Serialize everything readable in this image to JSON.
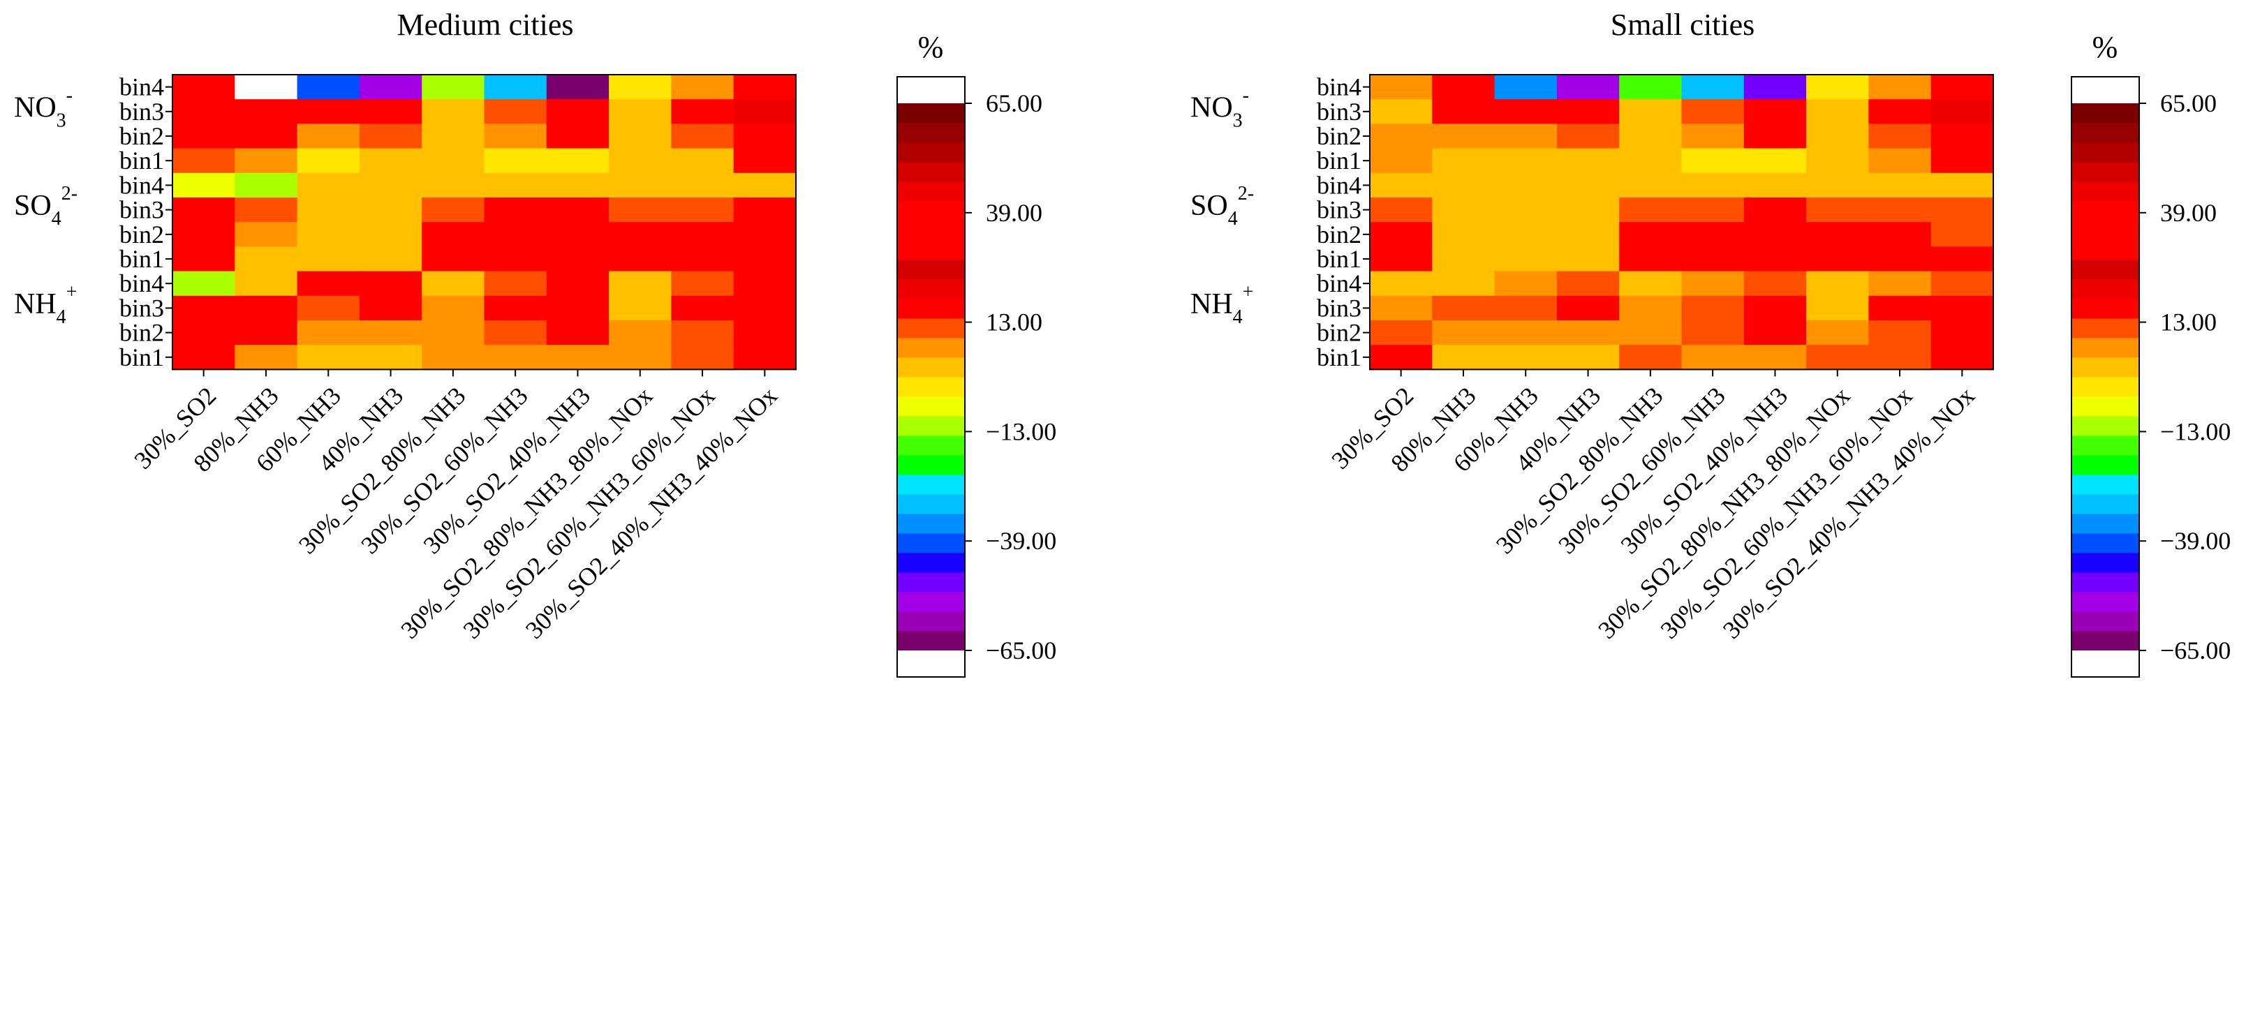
{
  "chart_data": [
    {
      "type": "heatmap",
      "title": "Medium cities",
      "columns": [
        "30%_SO2",
        "80%_NH3",
        "60%_NH3",
        "40%_NH3",
        "30%_SO2_80%_NH3",
        "30%_SO2_60%_NH3",
        "30%_SO2_40%_NH3",
        "30%_SO2_80%_NH3_80%_NOx",
        "30%_SO2_60%_NH3_60%_NOx",
        "30%_SO2_40%_NH3_40%_NOx"
      ],
      "row_labels": [
        "bin4",
        "bin3",
        "bin2",
        "bin1",
        "bin4",
        "bin3",
        "bin2",
        "bin1",
        "bin4",
        "bin3",
        "bin2",
        "bin1"
      ],
      "groups": [
        {
          "base": "NO",
          "sub": "3",
          "sup": "-",
          "rows": [
            0,
            3
          ]
        },
        {
          "base": "SO",
          "sub": "4",
          "sup": "2-",
          "rows": [
            4,
            7
          ]
        },
        {
          "base": "NH",
          "sub": "4",
          "sup": "+",
          "rows": [
            8,
            11
          ]
        }
      ],
      "values": [
        [
          15,
          70,
          -40,
          -55,
          -12,
          -30,
          -62,
          -2,
          8,
          30
        ],
        [
          15,
          30,
          15,
          30,
          3,
          10,
          30,
          0,
          15,
          45
        ],
        [
          15,
          30,
          7,
          10,
          3,
          6,
          15,
          0,
          10,
          30
        ],
        [
          10,
          7,
          -3,
          0,
          0,
          -3,
          -3,
          0,
          3,
          30
        ],
        [
          -5,
          -10,
          0,
          0,
          3,
          3,
          3,
          3,
          3,
          3
        ],
        [
          30,
          10,
          3,
          3,
          10,
          15,
          15,
          10,
          10,
          15
        ],
        [
          30,
          7,
          3,
          3,
          30,
          30,
          30,
          30,
          15,
          15
        ],
        [
          30,
          3,
          0,
          0,
          30,
          30,
          30,
          30,
          30,
          30
        ],
        [
          -10,
          0,
          15,
          30,
          3,
          10,
          30,
          3,
          10,
          15
        ],
        [
          15,
          30,
          10,
          15,
          7,
          15,
          30,
          3,
          15,
          30
        ],
        [
          30,
          15,
          7,
          7,
          7,
          10,
          15,
          7,
          10,
          30
        ],
        [
          15,
          7,
          0,
          0,
          7,
          7,
          7,
          7,
          10,
          30
        ]
      ],
      "colorbar": {
        "unit": "%",
        "ticks": [
          "65.00",
          "39.00",
          "13.00",
          "−13.00",
          "−39.00",
          "−65.00"
        ]
      }
    },
    {
      "type": "heatmap",
      "title": "Small cities",
      "columns": [
        "30%_SO2",
        "80%_NH3",
        "60%_NH3",
        "40%_NH3",
        "30%_SO2_80%_NH3",
        "30%_SO2_60%_NH3",
        "30%_SO2_40%_NH3",
        "30%_SO2_80%_NH3_80%_NOx",
        "30%_SO2_60%_NH3_60%_NOx",
        "30%_SO2_40%_NH3_40%_NOx"
      ],
      "row_labels": [
        "bin4",
        "bin3",
        "bin2",
        "bin1",
        "bin4",
        "bin3",
        "bin2",
        "bin1",
        "bin4",
        "bin3",
        "bin2",
        "bin1"
      ],
      "groups": [
        {
          "base": "NO",
          "sub": "3",
          "sup": "-",
          "rows": [
            0,
            3
          ]
        },
        {
          "base": "SO",
          "sub": "4",
          "sup": "2-",
          "rows": [
            4,
            7
          ]
        },
        {
          "base": "NH",
          "sub": "4",
          "sup": "+",
          "rows": [
            8,
            11
          ]
        }
      ],
      "values": [
        [
          7,
          30,
          -35,
          -55,
          -15,
          -28,
          -50,
          -3,
          8,
          30
        ],
        [
          3,
          15,
          15,
          30,
          3,
          10,
          30,
          0,
          15,
          45
        ],
        [
          7,
          7,
          7,
          10,
          3,
          6,
          15,
          3,
          10,
          30
        ],
        [
          7,
          3,
          0,
          0,
          0,
          -3,
          -3,
          0,
          7,
          30
        ],
        [
          3,
          3,
          0,
          0,
          3,
          3,
          3,
          3,
          3,
          3
        ],
        [
          10,
          3,
          3,
          3,
          10,
          10,
          15,
          10,
          10,
          10
        ],
        [
          30,
          3,
          3,
          3,
          30,
          30,
          30,
          15,
          15,
          10
        ],
        [
          30,
          3,
          0,
          0,
          30,
          30,
          30,
          30,
          30,
          30
        ],
        [
          3,
          3,
          7,
          10,
          3,
          7,
          10,
          3,
          7,
          10
        ],
        [
          7,
          10,
          10,
          15,
          7,
          10,
          30,
          3,
          15,
          30
        ],
        [
          10,
          7,
          7,
          7,
          7,
          10,
          15,
          7,
          10,
          30
        ],
        [
          15,
          3,
          0,
          0,
          10,
          7,
          7,
          10,
          10,
          30
        ]
      ],
      "colorbar": {
        "unit": "%",
        "ticks": [
          "65.00",
          "39.00",
          "13.00",
          "−13.00",
          "−39.00",
          "−65.00"
        ]
      }
    }
  ],
  "colorscale": {
    "vmin": -65,
    "vmax": 65,
    "levels": 20,
    "colors": [
      "#7a006e",
      "#9a00b6",
      "#a300e8",
      "#7300ff",
      "#1a00ff",
      "#0050ff",
      "#0090ff",
      "#00c0ff",
      "#00e5ff",
      "#00ff00",
      "#44ff00",
      "#aaff00",
      "#eeff00",
      "#ffe600",
      "#ffc000",
      "#ff9400",
      "#ff5000",
      "#ff0000",
      "#ee0000",
      "#d40000",
      "#ff0000",
      "#ff0000",
      "#ff0000",
      "#ee0000",
      "#d40000",
      "#b20000",
      "#960000",
      "#7a0000"
    ],
    "under_color": "#ffffff",
    "over_color": "#ffffff"
  }
}
